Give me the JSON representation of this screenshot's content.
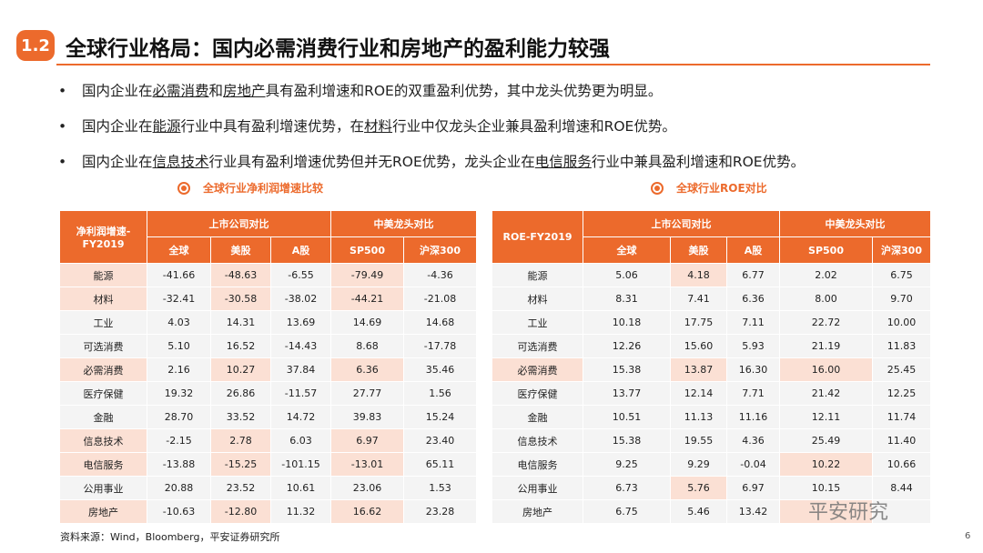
{
  "header": {
    "number": "1.2",
    "title": "全球行业格局：国内必需消费行业和房地产的盈利能力较强"
  },
  "bullets": [
    [
      {
        "text": "国内企业在"
      },
      {
        "text": "必需消费",
        "underline": true
      },
      {
        "text": "和"
      },
      {
        "text": "房地产",
        "underline": true
      },
      {
        "text": "具有盈利增速和ROE的双重盈利优势，其中龙头优势更为明显。"
      }
    ],
    [
      {
        "text": "国内企业在"
      },
      {
        "text": "能源",
        "underline": true
      },
      {
        "text": "行业中具有盈利增速优势，在"
      },
      {
        "text": "材料",
        "underline": true
      },
      {
        "text": "行业中仅龙头企业兼具盈利增速和ROE优势。"
      }
    ],
    [
      {
        "text": "国内企业在"
      },
      {
        "text": "信息技术",
        "underline": true
      },
      {
        "text": "行业具有盈利增速优势但并无ROE优势，龙头企业在"
      },
      {
        "text": "电信服务",
        "underline": true
      },
      {
        "text": "行业中兼具盈利增速和ROE优势。"
      }
    ]
  ],
  "tables": [
    {
      "caption": "全球行业净利润增速比较",
      "corner": "净利润增速-FY2019",
      "groups": [
        "上市公司对比",
        "中美龙头对比"
      ],
      "columns": [
        "全球",
        "美股",
        "A股",
        "SP500",
        "沪深300"
      ],
      "highlight": [
        [
          0,
          0
        ],
        [
          0,
          2
        ],
        [
          0,
          4
        ],
        [
          1,
          0
        ],
        [
          1,
          2
        ],
        [
          1,
          4
        ],
        [
          4,
          0
        ],
        [
          4,
          2
        ],
        [
          4,
          4
        ],
        [
          7,
          0
        ],
        [
          7,
          2
        ],
        [
          7,
          4
        ],
        [
          8,
          0
        ],
        [
          8,
          2
        ],
        [
          8,
          4
        ],
        [
          10,
          0
        ],
        [
          10,
          2
        ],
        [
          10,
          4
        ]
      ],
      "rows": [
        [
          "能源",
          "-41.66",
          "-48.63",
          "-6.55",
          "-79.49",
          "-4.36"
        ],
        [
          "材料",
          "-32.41",
          "-30.58",
          "-38.02",
          "-44.21",
          "-21.08"
        ],
        [
          "工业",
          "4.03",
          "14.31",
          "13.69",
          "14.69",
          "14.68"
        ],
        [
          "可选消费",
          "5.10",
          "16.52",
          "-14.43",
          "8.68",
          "-17.78"
        ],
        [
          "必需消费",
          "2.16",
          "10.27",
          "37.84",
          "6.36",
          "35.46"
        ],
        [
          "医疗保健",
          "19.32",
          "26.86",
          "-11.57",
          "27.77",
          "1.56"
        ],
        [
          "金融",
          "28.70",
          "33.52",
          "14.72",
          "39.83",
          "15.24"
        ],
        [
          "信息技术",
          "-2.15",
          "2.78",
          "6.03",
          "6.97",
          "23.40"
        ],
        [
          "电信服务",
          "-13.88",
          "-15.25",
          "-101.15",
          "-13.01",
          "65.11"
        ],
        [
          "公用事业",
          "20.88",
          "23.52",
          "10.61",
          "23.06",
          "1.53"
        ],
        [
          "房地产",
          "-10.63",
          "-12.80",
          "11.32",
          "16.62",
          "23.28"
        ]
      ]
    },
    {
      "caption": "全球行业ROE对比",
      "corner": "ROE-FY2019",
      "groups": [
        "上市公司对比",
        "中美龙头对比"
      ],
      "columns": [
        "全球",
        "美股",
        "A股",
        "SP500",
        "沪深300"
      ],
      "highlight": [
        [
          0,
          2
        ],
        [
          4,
          0
        ],
        [
          4,
          2
        ],
        [
          4,
          4
        ],
        [
          8,
          4
        ],
        [
          9,
          2
        ],
        [
          10,
          4
        ]
      ],
      "rows": [
        [
          "能源",
          "5.06",
          "4.18",
          "6.77",
          "2.02",
          "6.75"
        ],
        [
          "材料",
          "8.31",
          "7.41",
          "6.36",
          "8.00",
          "9.70"
        ],
        [
          "工业",
          "10.18",
          "17.75",
          "7.11",
          "22.72",
          "10.00"
        ],
        [
          "可选消费",
          "12.26",
          "15.60",
          "5.93",
          "21.19",
          "11.83"
        ],
        [
          "必需消费",
          "15.38",
          "13.87",
          "16.30",
          "16.00",
          "25.45"
        ],
        [
          "医疗保健",
          "13.77",
          "12.14",
          "7.71",
          "21.42",
          "12.25"
        ],
        [
          "金融",
          "10.51",
          "11.13",
          "11.16",
          "12.11",
          "11.74"
        ],
        [
          "信息技术",
          "15.38",
          "19.55",
          "4.36",
          "25.49",
          "11.40"
        ],
        [
          "电信服务",
          "9.25",
          "9.29",
          "-0.04",
          "10.22",
          "10.66"
        ],
        [
          "公用事业",
          "6.73",
          "5.76",
          "6.97",
          "10.15",
          "8.44"
        ],
        [
          "房地产",
          "6.75",
          "5.46",
          "13.42",
          null,
          null
        ]
      ]
    }
  ],
  "source": "资料来源：Wind，Bloomberg，平安证券研究所",
  "watermark": "平安研究",
  "page_number": "6"
}
